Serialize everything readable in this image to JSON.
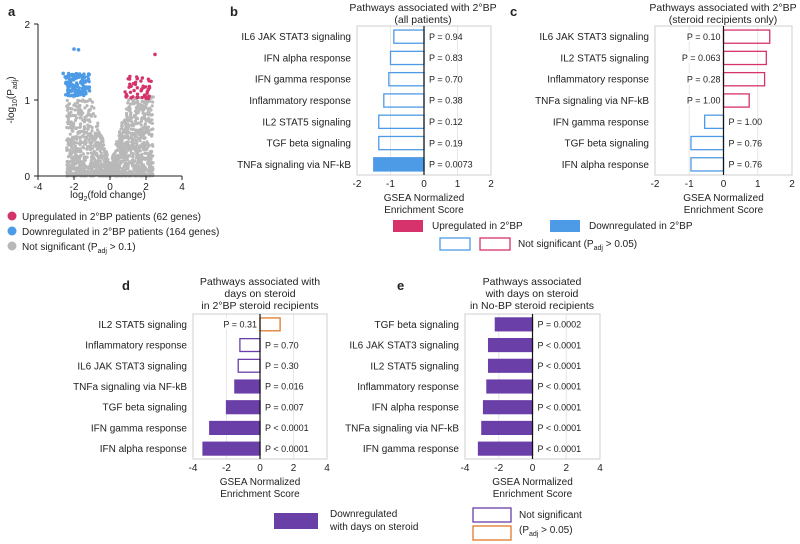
{
  "colors": {
    "up": "#d6336c",
    "down": "#4d9be6",
    "ns": "#b8b8b8",
    "purple": "#6a3fa8",
    "orange": "#e07a2a",
    "zero": "#111111",
    "grid": "#e6e6e6"
  },
  "legend_top": {
    "up": "Upregulated in 2°BP",
    "down": "Downregulated in 2°BP",
    "ns": "Not significant (P",
    "ns_sub": "adj",
    "ns_tail": " > 0.05)"
  },
  "legend_bottom": {
    "down": "Downregulated",
    "down2": "with days on steroid",
    "ns": "Not significant",
    "ns2_pre": "(P",
    "ns2_sub": "adj",
    "ns2_tail": " > 0.05)"
  },
  "chart_data": [
    {
      "id": "a",
      "type": "scatter",
      "panel": "a",
      "xlabel_pre": "log",
      "xlabel_sub": "2",
      "xlabel_tail": "(fold change)",
      "ylabel_pre": "-log",
      "ylabel_sub": "10",
      "ylabel_mid": "(P",
      "ylabel_sub2": "adj",
      "ylabel_tail": ")",
      "xlim": [
        -4,
        4
      ],
      "ylim": [
        0,
        2
      ],
      "xticks": [
        "-4",
        "-2",
        "0",
        "2",
        "4"
      ],
      "yticks": [
        "0",
        "1",
        "2"
      ],
      "legend": {
        "up": "Upregulated in 2°BP patients (62 genes)",
        "down": "Downregulated in 2°BP patients (164 genes)",
        "ns_pre": "Not significant (P",
        "ns_sub": "adj",
        "ns_tail": " > 0.1)"
      },
      "notable_points": [
        {
          "x": -2.0,
          "y": 1.67,
          "group": "down"
        },
        {
          "x": -1.75,
          "y": 1.66,
          "group": "down"
        },
        {
          "x": 2.5,
          "y": 1.6,
          "group": "up"
        },
        {
          "x": -2.6,
          "y": 1.35,
          "group": "down"
        }
      ]
    },
    {
      "id": "b",
      "type": "bar",
      "panel": "b",
      "title": [
        "Pathways associated with 2°BP",
        "(all patients)"
      ],
      "xlabel": [
        "GSEA Normalized",
        "Enrichment Score"
      ],
      "xlim": [
        -2,
        2
      ],
      "xticks": [
        "-2",
        "-1",
        "0",
        "1",
        "2"
      ],
      "categories": [
        "IL6 JAK STAT3 signaling",
        "IFN alpha response",
        "IFN gamma response",
        "Inflammatory response",
        "IL2 STAT5 signaling",
        "TGF beta signaling",
        "TNFa signaling via NF-kB"
      ],
      "values": [
        -0.9,
        -1.0,
        -1.05,
        -1.2,
        -1.35,
        -1.35,
        -1.5
      ],
      "pvalues": [
        "P = 0.94",
        "P = 0.83",
        "P = 0.70",
        "P = 0.38",
        "P = 0.12",
        "P = 0.19",
        "P = 0.0073"
      ],
      "significant": [
        false,
        false,
        false,
        false,
        false,
        false,
        true
      ]
    },
    {
      "id": "c",
      "type": "bar",
      "panel": "c",
      "title": [
        "Pathways associated with 2°BP",
        "(steroid recipients only)"
      ],
      "xlabel": [
        "GSEA Normalized",
        "Enrichment Score"
      ],
      "xlim": [
        -2,
        2
      ],
      "xticks": [
        "-2",
        "-1",
        "0",
        "1",
        "2"
      ],
      "categories": [
        "IL6 JAK STAT3 signaling",
        "IL2 STAT5 signaling",
        "Inflammatory response",
        "TNFa signaling via NF-kB",
        "IFN gamma response",
        "TGF beta signaling",
        "IFN alpha response"
      ],
      "values": [
        1.35,
        1.25,
        1.2,
        0.75,
        -0.55,
        -0.95,
        -0.95
      ],
      "pvalues": [
        "P = 0.10",
        "P = 0.063",
        "P = 0.28",
        "P = 1.00",
        "P = 1.00",
        "P = 0.76",
        "P = 0.76"
      ],
      "significant": [
        false,
        false,
        false,
        false,
        false,
        false,
        false
      ]
    },
    {
      "id": "d",
      "type": "bar",
      "panel": "d",
      "title": [
        "Pathways associated with",
        "days on steroid",
        "in 2°BP steroid recipients"
      ],
      "xlabel": [
        "GSEA Normalized",
        "Enrichment Score"
      ],
      "xlim": [
        -4,
        4
      ],
      "xticks": [
        "-4",
        "-2",
        "0",
        "2",
        "4"
      ],
      "categories": [
        "IL2 STAT5 signaling",
        "Inflammatory response",
        "IL6 JAK STAT3 signaling",
        "TNFa signaling via NF-kB",
        "TGF beta signaling",
        "IFN gamma response",
        "IFN alpha response"
      ],
      "values": [
        1.2,
        -1.2,
        -1.3,
        -1.5,
        -2.0,
        -3.0,
        -3.4
      ],
      "pvalues": [
        "P = 0.31",
        "P = 0.70",
        "P = 0.30",
        "P = 0.016",
        "P = 0.007",
        "P < 0.0001",
        "P < 0.0001"
      ],
      "significant": [
        false,
        false,
        false,
        true,
        true,
        true,
        true
      ]
    },
    {
      "id": "e",
      "type": "bar",
      "panel": "e",
      "title": [
        "Pathways associated",
        "with days on steroid",
        "in No-BP steroid recipients"
      ],
      "xlabel": [
        "GSEA Normalized",
        "Enrichment Score"
      ],
      "xlim": [
        -4,
        4
      ],
      "xticks": [
        "-4",
        "-2",
        "0",
        "2",
        "4"
      ],
      "categories": [
        "TGF beta signaling",
        "IL6 JAK STAT3 signaling",
        "IL2 STAT5 signaling",
        "Inflammatory response",
        "IFN alpha response",
        "TNFa signaling via NF-kB",
        "IFN gamma response"
      ],
      "values": [
        -2.2,
        -2.6,
        -2.6,
        -2.7,
        -2.9,
        -3.0,
        -3.2
      ],
      "pvalues": [
        "P = 0.0002",
        "P < 0.0001",
        "P < 0.0001",
        "P < 0.0001",
        "P < 0.0001",
        "P < 0.0001",
        "P < 0.0001"
      ],
      "significant": [
        true,
        true,
        true,
        true,
        true,
        true,
        true
      ]
    }
  ]
}
